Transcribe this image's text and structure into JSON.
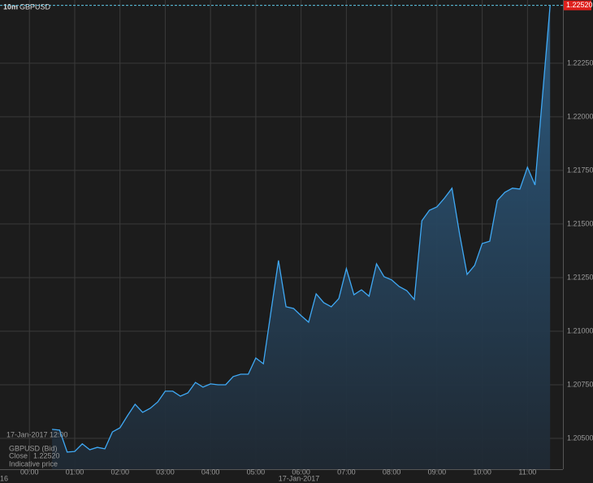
{
  "chart_data": {
    "type": "area",
    "interval": "10m",
    "title": "GBPUSD",
    "series": [
      {
        "name": "GBPUSD (Bid)",
        "color": "#3fa9f5",
        "x": [
          30,
          40,
          50,
          60,
          70,
          80,
          90,
          100,
          110,
          120,
          130,
          140,
          150,
          160,
          170,
          180,
          190,
          200,
          210,
          220,
          230,
          240,
          250,
          260,
          270,
          280,
          290,
          300,
          310,
          330,
          340,
          350,
          360,
          370,
          380,
          390,
          400,
          410,
          420,
          430,
          440,
          450,
          460,
          470,
          480,
          490,
          500,
          510,
          520,
          530,
          540,
          550,
          560,
          570,
          580,
          590,
          600,
          610,
          620,
          630,
          640,
          650,
          660,
          670,
          690
        ],
        "values": [
          1.20542,
          1.20538,
          1.20436,
          1.20439,
          1.20474,
          1.20447,
          1.20458,
          1.20451,
          1.2053,
          1.20549,
          1.20606,
          1.20659,
          1.20621,
          1.2064,
          1.2067,
          1.2072,
          1.2072,
          1.20697,
          1.20712,
          1.20761,
          1.20739,
          1.20754,
          1.2075,
          1.2075,
          1.20788,
          1.20799,
          1.20799,
          1.20875,
          1.20848,
          1.2133,
          1.21114,
          1.21106,
          1.21072,
          1.21042,
          1.21174,
          1.21133,
          1.21114,
          1.21152,
          1.21292,
          1.2117,
          1.21193,
          1.21163,
          1.21314,
          1.21254,
          1.21239,
          1.21208,
          1.21189,
          1.21148,
          1.21515,
          1.21564,
          1.2158,
          1.21621,
          1.21667,
          1.21455,
          1.21265,
          1.21307,
          1.21409,
          1.2142,
          1.2161,
          1.21648,
          1.21667,
          1.21663,
          1.21765,
          1.21682,
          1.2252
        ]
      }
    ],
    "xlim": [
      -39,
      707
    ],
    "xticks": [
      {
        "value": 0,
        "label": "00:00"
      },
      {
        "value": 60,
        "label": "01:00"
      },
      {
        "value": 120,
        "label": "02:00"
      },
      {
        "value": 180,
        "label": "03:00"
      },
      {
        "value": 240,
        "label": "04:00"
      },
      {
        "value": 300,
        "label": "05:00"
      },
      {
        "value": 360,
        "label": "06:00"
      },
      {
        "value": 420,
        "label": "07:00"
      },
      {
        "value": 480,
        "label": "08:00"
      },
      {
        "value": 540,
        "label": "09:00"
      },
      {
        "value": 600,
        "label": "10:00"
      },
      {
        "value": 660,
        "label": "11:00"
      }
    ],
    "ylim": [
      1.20356,
      1.22545
    ],
    "yticks": [
      {
        "value": 1.205,
        "label": "1.20500"
      },
      {
        "value": 1.2075,
        "label": "1.20750"
      },
      {
        "value": 1.21,
        "label": "1.21000"
      },
      {
        "value": 1.2125,
        "label": "1.21250"
      },
      {
        "value": 1.215,
        "label": "1.21500"
      },
      {
        "value": 1.2175,
        "label": "1.21750"
      },
      {
        "value": 1.22,
        "label": "1.22000"
      },
      {
        "value": 1.2225,
        "label": "1.22250"
      }
    ],
    "last_price": {
      "value": 1.2252,
      "label": "1.22520"
    },
    "date_labels": [
      "16",
      "17-Jan-2017"
    ],
    "grid": true,
    "info": {
      "date": "17-Jan-2017 12:00",
      "close_label": "Close",
      "note": "Indicative price"
    }
  }
}
